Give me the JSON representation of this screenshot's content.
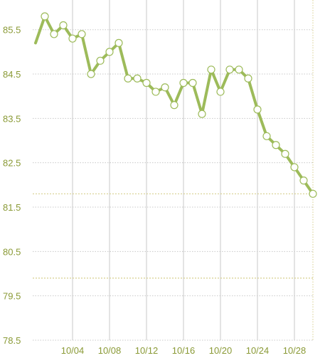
{
  "chart_data": {
    "type": "line",
    "title": "",
    "xlabel": "",
    "ylabel": "",
    "ylim": [
      78.5,
      85.8
    ],
    "yticks": [
      "85.5",
      "84.5",
      "83.5",
      "82.5",
      "81.5",
      "80.5",
      "79.5",
      "78.5"
    ],
    "xticks": [
      "10/04",
      "10/08",
      "10/12",
      "10/16",
      "10/20",
      "10/24",
      "10/28"
    ],
    "grid": true,
    "reference_lines": [
      81.8,
      79.9
    ],
    "series": [
      {
        "x": [
          "09/30",
          "10/01",
          "10/02",
          "10/03",
          "10/04",
          "10/05",
          "10/06",
          "10/07",
          "10/08",
          "10/09",
          "10/10",
          "10/11",
          "10/12",
          "10/13",
          "10/14",
          "10/15",
          "10/16",
          "10/17",
          "10/18",
          "10/19",
          "10/20",
          "10/21",
          "10/22",
          "10/23",
          "10/24",
          "10/25",
          "10/26",
          "10/27",
          "10/28",
          "10/29",
          "10/30"
        ],
        "values": [
          85.2,
          85.8,
          85.4,
          85.6,
          85.3,
          85.4,
          84.5,
          84.8,
          85.0,
          85.2,
          84.4,
          84.4,
          84.3,
          84.1,
          84.2,
          83.8,
          84.3,
          84.3,
          83.6,
          84.6,
          84.1,
          84.6,
          84.6,
          84.4,
          83.7,
          83.1,
          82.9,
          82.7,
          82.4,
          82.1,
          81.8
        ],
        "marker_from_index": 1
      }
    ]
  },
  "colors": {
    "line": "#9dbb5a",
    "marker_fill": "#ffffff",
    "tick_text": "#8a9a36",
    "vgrid": "#c8c8c8",
    "hgrid": "#c9c9c9",
    "ref_line": "#d8cf8f"
  }
}
